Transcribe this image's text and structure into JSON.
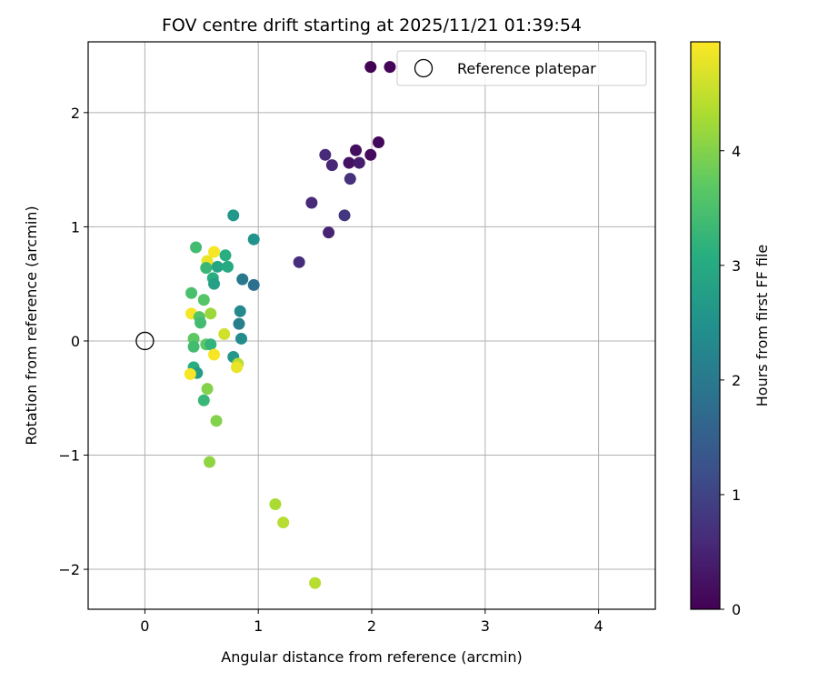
{
  "chart_data": {
    "type": "scatter",
    "title": "FOV centre drift starting at 2025/11/21 01:39:54",
    "xlabel": "Angular distance from reference (arcmin)",
    "ylabel": "Rotation from reference (arcmin)",
    "xlim": [
      -0.5,
      4.5
    ],
    "ylim": [
      -2.35,
      2.62
    ],
    "xticks": [
      0,
      1,
      2,
      3,
      4
    ],
    "yticks": [
      -2,
      -1,
      0,
      1,
      2
    ],
    "xtick_labels": [
      "0",
      "1",
      "2",
      "3",
      "4"
    ],
    "ytick_labels": [
      "−2",
      "−1",
      "0",
      "1",
      "2"
    ],
    "grid": true,
    "legend": {
      "location": "upper-right",
      "entries": [
        "Reference platepar"
      ]
    },
    "reference_point": {
      "x": 0,
      "y": 0,
      "label": "Reference platepar"
    },
    "colorbar": {
      "label": "Hours from first FF file",
      "colormap": "viridis",
      "range": [
        0,
        4.95
      ],
      "ticks": [
        0,
        1,
        2,
        3,
        4
      ],
      "tick_labels": [
        "0",
        "1",
        "2",
        "3",
        "4"
      ]
    },
    "points": [
      {
        "x": 1.99,
        "y": 2.4,
        "c": 0.02
      },
      {
        "x": 2.16,
        "y": 2.4,
        "c": 0.05
      },
      {
        "x": 2.06,
        "y": 1.74,
        "c": 0.1
      },
      {
        "x": 1.99,
        "y": 1.63,
        "c": 0.15
      },
      {
        "x": 1.86,
        "y": 1.67,
        "c": 0.2
      },
      {
        "x": 1.8,
        "y": 1.56,
        "c": 0.25
      },
      {
        "x": 1.89,
        "y": 1.56,
        "c": 0.4
      },
      {
        "x": 1.59,
        "y": 1.63,
        "c": 0.6
      },
      {
        "x": 1.65,
        "y": 1.54,
        "c": 0.55
      },
      {
        "x": 1.81,
        "y": 1.42,
        "c": 0.7
      },
      {
        "x": 1.76,
        "y": 1.1,
        "c": 0.8
      },
      {
        "x": 1.47,
        "y": 1.21,
        "c": 0.6
      },
      {
        "x": 1.62,
        "y": 0.95,
        "c": 0.5
      },
      {
        "x": 1.36,
        "y": 0.69,
        "c": 0.65
      },
      {
        "x": 0.78,
        "y": 1.1,
        "c": 2.6
      },
      {
        "x": 0.96,
        "y": 0.89,
        "c": 2.5
      },
      {
        "x": 0.45,
        "y": 0.82,
        "c": 3.4
      },
      {
        "x": 0.61,
        "y": 0.78,
        "c": 4.9
      },
      {
        "x": 0.71,
        "y": 0.75,
        "c": 3.1
      },
      {
        "x": 0.55,
        "y": 0.7,
        "c": 4.8
      },
      {
        "x": 0.54,
        "y": 0.64,
        "c": 3.3
      },
      {
        "x": 0.64,
        "y": 0.65,
        "c": 2.9
      },
      {
        "x": 0.73,
        "y": 0.65,
        "c": 3.0
      },
      {
        "x": 0.6,
        "y": 0.55,
        "c": 3.1
      },
      {
        "x": 0.61,
        "y": 0.5,
        "c": 2.8
      },
      {
        "x": 0.86,
        "y": 0.54,
        "c": 2.0
      },
      {
        "x": 0.96,
        "y": 0.49,
        "c": 1.8
      },
      {
        "x": 0.41,
        "y": 0.42,
        "c": 3.5
      },
      {
        "x": 0.52,
        "y": 0.36,
        "c": 3.6
      },
      {
        "x": 0.41,
        "y": 0.24,
        "c": 4.9
      },
      {
        "x": 0.58,
        "y": 0.24,
        "c": 4.2
      },
      {
        "x": 0.84,
        "y": 0.26,
        "c": 2.3
      },
      {
        "x": 0.48,
        "y": 0.21,
        "c": 3.6
      },
      {
        "x": 0.49,
        "y": 0.16,
        "c": 3.4
      },
      {
        "x": 0.83,
        "y": 0.15,
        "c": 2.1
      },
      {
        "x": 0.7,
        "y": 0.06,
        "c": 4.6
      },
      {
        "x": 0.43,
        "y": 0.02,
        "c": 3.7
      },
      {
        "x": 0.85,
        "y": 0.02,
        "c": 2.4
      },
      {
        "x": 0.54,
        "y": -0.03,
        "c": 3.7
      },
      {
        "x": 0.58,
        "y": -0.03,
        "c": 3.2
      },
      {
        "x": 0.43,
        "y": -0.05,
        "c": 3.4
      },
      {
        "x": 0.61,
        "y": -0.12,
        "c": 4.9
      },
      {
        "x": 0.78,
        "y": -0.14,
        "c": 2.6
      },
      {
        "x": 0.82,
        "y": -0.2,
        "c": 4.4
      },
      {
        "x": 0.81,
        "y": -0.23,
        "c": 4.8
      },
      {
        "x": 0.43,
        "y": -0.23,
        "c": 3.1
      },
      {
        "x": 0.46,
        "y": -0.28,
        "c": 2.7
      },
      {
        "x": 0.4,
        "y": -0.29,
        "c": 4.9
      },
      {
        "x": 0.55,
        "y": -0.42,
        "c": 4.0
      },
      {
        "x": 0.52,
        "y": -0.52,
        "c": 3.3
      },
      {
        "x": 0.63,
        "y": -0.7,
        "c": 4.0
      },
      {
        "x": 0.57,
        "y": -1.06,
        "c": 4.1
      },
      {
        "x": 1.15,
        "y": -1.43,
        "c": 4.3
      },
      {
        "x": 1.22,
        "y": -1.59,
        "c": 4.4
      },
      {
        "x": 1.5,
        "y": -2.12,
        "c": 4.4
      }
    ]
  }
}
